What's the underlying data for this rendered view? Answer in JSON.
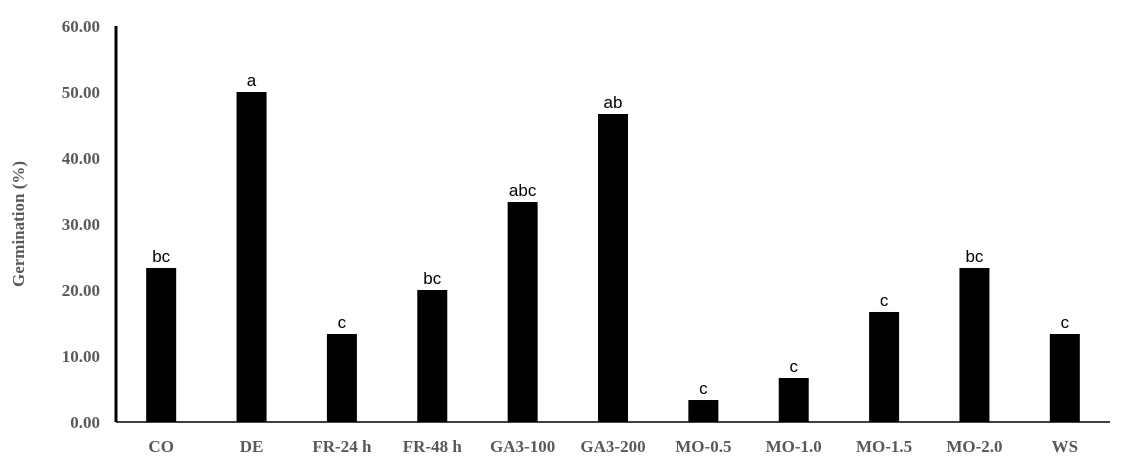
{
  "chart_data": {
    "type": "bar",
    "title": "",
    "xlabel": "",
    "ylabel": "Germination (%)",
    "ylim": [
      0,
      60
    ],
    "yticks": [
      "0.00",
      "10.00",
      "20.00",
      "30.00",
      "40.00",
      "50.00",
      "60.00"
    ],
    "grid": false,
    "categories": [
      "CO",
      "DE",
      "FR-24 h",
      "FR-48 h",
      "GA3-100",
      "GA3-200",
      "MO-0.5",
      "MO-1.0",
      "MO-1.5",
      "MO-2.0",
      "WS"
    ],
    "values": [
      23.33,
      50.0,
      13.33,
      20.0,
      33.33,
      46.67,
      3.33,
      6.67,
      16.67,
      23.33,
      13.33
    ],
    "labels": [
      "bc",
      "a",
      "c",
      "bc",
      "abc",
      "ab",
      "c",
      "c",
      "c",
      "bc",
      "c"
    ],
    "bar_color": "#000000"
  }
}
